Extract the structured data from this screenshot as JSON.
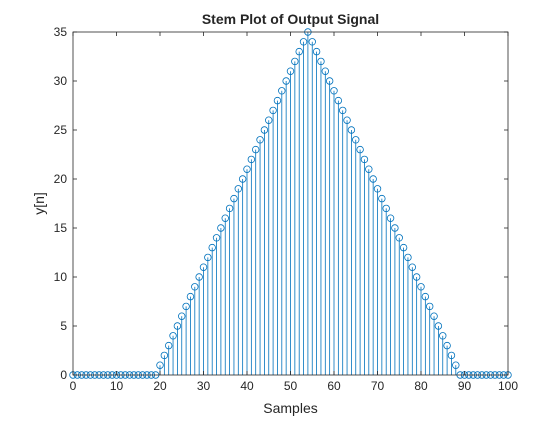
{
  "chart_data": {
    "type": "stem",
    "title": "Stem Plot of Output Signal",
    "xlabel": "Samples",
    "ylabel": "y[n]",
    "xlim": [
      0,
      100
    ],
    "ylim": [
      0,
      35
    ],
    "xticks": [
      0,
      10,
      20,
      30,
      40,
      50,
      60,
      70,
      80,
      90,
      100
    ],
    "yticks": [
      0,
      5,
      10,
      15,
      20,
      25,
      30,
      35
    ],
    "grid": false,
    "marker": "circle-open",
    "color": "#0072BD",
    "x": [
      0,
      1,
      2,
      3,
      4,
      5,
      6,
      7,
      8,
      9,
      10,
      11,
      12,
      13,
      14,
      15,
      16,
      17,
      18,
      19,
      20,
      21,
      22,
      23,
      24,
      25,
      26,
      27,
      28,
      29,
      30,
      31,
      32,
      33,
      34,
      35,
      36,
      37,
      38,
      39,
      40,
      41,
      42,
      43,
      44,
      45,
      46,
      47,
      48,
      49,
      50,
      51,
      52,
      53,
      54,
      55,
      56,
      57,
      58,
      59,
      60,
      61,
      62,
      63,
      64,
      65,
      66,
      67,
      68,
      69,
      70,
      71,
      72,
      73,
      74,
      75,
      76,
      77,
      78,
      79,
      80,
      81,
      82,
      83,
      84,
      85,
      86,
      87,
      88,
      89,
      90,
      91,
      92,
      93,
      94,
      95,
      96,
      97,
      98,
      99,
      100
    ],
    "y": [
      0,
      0,
      0,
      0,
      0,
      0,
      0,
      0,
      0,
      0,
      0,
      0,
      0,
      0,
      0,
      0,
      0,
      0,
      0,
      0,
      1,
      2,
      3,
      4,
      5,
      6,
      7,
      8,
      9,
      10,
      11,
      12,
      13,
      14,
      15,
      16,
      17,
      18,
      19,
      20,
      21,
      22,
      23,
      24,
      25,
      26,
      27,
      28,
      29,
      30,
      31,
      32,
      33,
      34,
      35,
      34,
      33,
      32,
      31,
      30,
      29,
      28,
      27,
      26,
      25,
      24,
      23,
      22,
      21,
      20,
      19,
      18,
      17,
      16,
      15,
      14,
      13,
      12,
      11,
      10,
      9,
      8,
      7,
      6,
      5,
      4,
      3,
      2,
      1,
      0,
      0,
      0,
      0,
      0,
      0,
      0,
      0,
      0,
      0,
      0,
      0
    ]
  }
}
